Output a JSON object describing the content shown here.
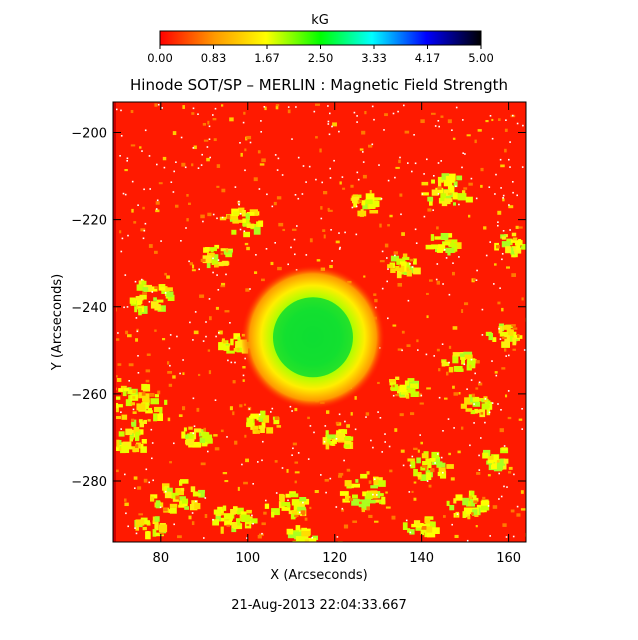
{
  "chart_data": {
    "type": "heatmap",
    "title": "Hinode SOT/SP – MERLIN : Magnetic Field Strength",
    "xlabel": "X (Arcseconds)",
    "ylabel": "Y (Arcseconds)",
    "xlim": [
      69,
      164
    ],
    "ylim": [
      -294,
      -193
    ],
    "x_ticks": [
      80,
      100,
      120,
      140,
      160
    ],
    "y_ticks": [
      -200,
      -220,
      -240,
      -260,
      -280
    ],
    "timestamp": "21-Aug-2013 22:04:33.667",
    "colorbar": {
      "label": "kG",
      "range": [
        0,
        5
      ],
      "ticks": [
        "0.00",
        "0.83",
        "1.67",
        "2.50",
        "3.33",
        "4.17",
        "5.00"
      ],
      "colors": [
        "#ff0000",
        "#ffff00",
        "#00ff00",
        "#00ffff",
        "#0000ff",
        "#000000"
      ]
    },
    "features": {
      "sunspot_center": [
        115,
        -247
      ],
      "umbra_strength_kG": 2.5,
      "background_strength_kG": 0.2
    }
  }
}
